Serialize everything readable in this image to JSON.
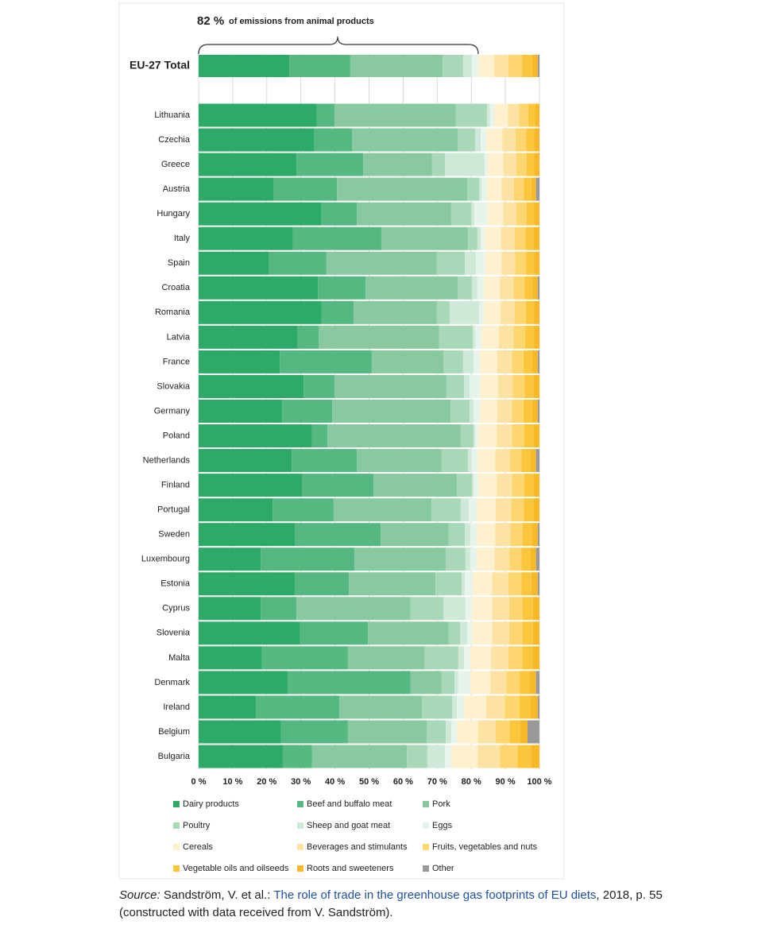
{
  "chart_data": {
    "type": "stacked-bar-horizontal",
    "annotation": {
      "value": "82 %",
      "text": "of emissions from animal products"
    },
    "categories": [
      "EU-27 Total",
      "Lithuania",
      "Czechia",
      "Greece",
      "Austria",
      "Hungary",
      "Italy",
      "Spain",
      "Croatia",
      "Romania",
      "Latvia",
      "France",
      "Slovakia",
      "Germany",
      "Poland",
      "Netherlands",
      "Finland",
      "Portugal",
      "Sweden",
      "Luxembourg",
      "Estonia",
      "Cyprus",
      "Slovenia",
      "Malta",
      "Denmark",
      "Ireland",
      "Belgium",
      "Bulgaria"
    ],
    "xlim": [
      0,
      100
    ],
    "xticks": [
      {
        "value": 0,
        "label": "0 %"
      },
      {
        "value": 10,
        "label": "10 %"
      },
      {
        "value": 20,
        "label": "20 %"
      },
      {
        "value": 30,
        "label": "30 %"
      },
      {
        "value": 40,
        "label": "40 %"
      },
      {
        "value": 50,
        "label": "50 %"
      },
      {
        "value": 60,
        "label": "60 %"
      },
      {
        "value": 70,
        "label": "70 %"
      },
      {
        "value": 80,
        "label": "80 %"
      },
      {
        "value": 90,
        "label": "90 %"
      },
      {
        "value": 100,
        "label": "100 %"
      }
    ],
    "grid": true,
    "series": [
      {
        "name": "Dairy products",
        "color": "#2eaa68",
        "values": [
          26.6,
          34.7,
          33.8,
          28.7,
          22.1,
          35.9,
          27.7,
          20.7,
          35.0,
          36.1,
          28.9,
          23.8,
          30.8,
          24.5,
          33.3,
          27.3,
          30.3,
          21.7,
          28.2,
          18.2,
          28.2,
          18.2,
          29.8,
          18.6,
          26.1,
          16.8,
          24.2,
          24.7
        ]
      },
      {
        "name": "Beef and buffalo meat",
        "color": "#55b880",
        "values": [
          17.9,
          5.2,
          11.2,
          19.6,
          18.5,
          10.5,
          25.9,
          16.8,
          14.0,
          9.4,
          6.3,
          27.0,
          9.1,
          14.7,
          4.5,
          19.1,
          21.0,
          17.9,
          25.2,
          27.5,
          15.9,
          10.5,
          19.9,
          25.2,
          36.1,
          24.5,
          19.6,
          8.6
        ]
      },
      {
        "name": "Pork",
        "color": "#88c9a0",
        "values": [
          27.1,
          35.6,
          31.0,
          20.2,
          38.2,
          27.7,
          25.4,
          32.4,
          27.0,
          24.4,
          35.4,
          21.0,
          32.8,
          34.7,
          39.1,
          24.9,
          24.5,
          28.7,
          20.0,
          26.8,
          25.4,
          33.5,
          23.7,
          22.4,
          9.1,
          24.2,
          23.1,
          27.8
        ]
      },
      {
        "name": "Poultry",
        "color": "#a9d8b9",
        "values": [
          6.0,
          9.1,
          5.1,
          3.8,
          3.5,
          5.9,
          2.8,
          8.2,
          4.2,
          3.8,
          9.8,
          5.8,
          5.2,
          5.6,
          3.8,
          7.7,
          4.4,
          8.6,
          4.7,
          5.8,
          7.7,
          9.6,
          3.3,
          10.0,
          3.8,
          8.9,
          5.6,
          6.0
        ]
      },
      {
        "name": "Sheep and goat meat",
        "color": "#cfe9d9",
        "values": [
          2.6,
          0.9,
          1.7,
          11.6,
          0.7,
          0.9,
          1.0,
          3.3,
          1.6,
          8.6,
          0.7,
          3.1,
          1.6,
          1.2,
          0.4,
          1.0,
          0.5,
          2.4,
          1.6,
          1.4,
          0.9,
          6.5,
          2.1,
          1.7,
          1.1,
          1.4,
          1.6,
          5.2
        ]
      },
      {
        "name": "Eggs",
        "color": "#e7f4ec",
        "values": [
          1.8,
          1.2,
          1.6,
          0.9,
          1.6,
          3.9,
          1.1,
          2.7,
          1.9,
          1.4,
          1.9,
          1.8,
          3.0,
          1.8,
          0.9,
          1.8,
          1.3,
          2.3,
          1.9,
          1.9,
          2.3,
          1.9,
          1.4,
          1.8,
          3.5,
          2.1,
          1.7,
          1.8
        ]
      },
      {
        "name": "Cereals",
        "color": "#fdf1cf",
        "values": [
          4.7,
          4.0,
          4.7,
          4.6,
          4.3,
          4.6,
          4.8,
          4.8,
          4.7,
          4.9,
          5.1,
          5.1,
          5.3,
          5.1,
          5.4,
          5.2,
          5.4,
          5.5,
          5.4,
          5.2,
          5.7,
          5.9,
          5.9,
          6.1,
          5.8,
          6.5,
          6.2,
          7.8
        ]
      },
      {
        "name": "Beverages and stimulants",
        "color": "#fde3a3",
        "values": [
          4.2,
          3.3,
          3.9,
          3.8,
          3.6,
          3.8,
          4.0,
          4.0,
          4.0,
          4.1,
          4.3,
          4.3,
          4.4,
          4.3,
          4.5,
          4.3,
          4.5,
          4.6,
          4.5,
          4.4,
          4.8,
          5.0,
          5.0,
          5.1,
          4.8,
          5.4,
          5.2,
          6.5
        ]
      },
      {
        "name": "Fruits, vegetables and nuts",
        "color": "#fdd66f",
        "values": [
          4.0,
          2.7,
          3.1,
          3.0,
          2.9,
          3.0,
          3.2,
          3.2,
          3.2,
          3.3,
          3.4,
          3.4,
          3.5,
          3.4,
          3.6,
          3.4,
          3.6,
          3.7,
          3.6,
          3.5,
          3.8,
          4.0,
          4.0,
          4.1,
          3.9,
          4.3,
          4.1,
          5.2
        ]
      },
      {
        "name": "Vegetable oils and oilseeds",
        "color": "#fbc53c",
        "values": [
          3.0,
          2.0,
          2.3,
          2.3,
          2.2,
          2.3,
          2.4,
          2.4,
          2.4,
          2.4,
          2.6,
          2.6,
          2.6,
          2.6,
          2.7,
          2.6,
          2.7,
          2.8,
          2.7,
          2.6,
          2.9,
          3.0,
          3.0,
          3.0,
          2.9,
          3.2,
          3.1,
          3.9
        ]
      },
      {
        "name": "Roots and sweeteners",
        "color": "#f7b928",
        "values": [
          1.6,
          1.3,
          1.6,
          1.5,
          1.4,
          1.5,
          1.7,
          1.5,
          1.5,
          1.6,
          1.6,
          1.6,
          1.7,
          1.6,
          1.8,
          1.7,
          1.8,
          1.8,
          1.7,
          1.7,
          1.9,
          1.9,
          1.9,
          2.0,
          1.9,
          2.2,
          2.1,
          2.5
        ]
      },
      {
        "name": "Other",
        "color": "#999999",
        "values": [
          0.5,
          0,
          0,
          0,
          1.0,
          0,
          0,
          0,
          0.5,
          0,
          0,
          0.5,
          0,
          0.5,
          0,
          1.0,
          0,
          0,
          0.5,
          1.0,
          0.5,
          0,
          0,
          0,
          1.0,
          0.5,
          3.5,
          0
        ]
      }
    ]
  },
  "source": {
    "label": "Source:",
    "text": "Sandström, V. et al.:",
    "link": "The role of trade in the greenhouse gas footprints of EU diets",
    "rest": ", 2018, p. 55 (constructed with data received from V. Sandström)."
  }
}
